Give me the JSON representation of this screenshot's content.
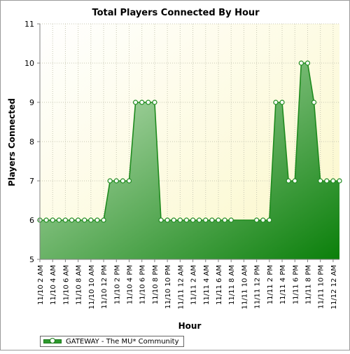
{
  "chart_data": {
    "type": "area",
    "title": "Total Players Connected By Hour",
    "xlabel": "Hour",
    "ylabel": "Players Connected",
    "ylim": [
      5,
      11
    ],
    "yticks": [
      5,
      6,
      7,
      8,
      9,
      10,
      11
    ],
    "grid": true,
    "legend_position": "bottom-left",
    "x_tick_labels": [
      "11/10 2 AM",
      "11/10 4 AM",
      "11/10 6 AM",
      "11/10 8 AM",
      "11/10 10 AM",
      "11/10 12 PM",
      "11/10 2 PM",
      "11/10 4 PM",
      "11/10 6 PM",
      "11/10 8 PM",
      "11/10 10 PM",
      "11/11 12 AM",
      "11/11 2 AM",
      "11/11 4 AM",
      "11/11 6 AM",
      "11/11 8 AM",
      "11/11 10 AM",
      "11/11 12 PM",
      "11/11 2 PM",
      "11/11 4 PM",
      "11/11 6 PM",
      "11/11 8 PM",
      "11/11 10 PM",
      "11/12 12 AM"
    ],
    "series": [
      {
        "name": "GATEWAY - The MU* Community",
        "color": "#1e8a1e",
        "values": [
          6,
          6,
          6,
          6,
          6,
          6,
          6,
          6,
          6,
          6,
          6,
          7,
          7,
          7,
          7,
          9,
          9,
          9,
          9,
          6,
          6,
          6,
          6,
          6,
          6,
          6,
          6,
          6,
          6,
          6,
          6,
          null,
          null,
          null,
          6,
          6,
          6,
          9,
          9,
          7,
          7,
          10,
          10,
          9,
          7,
          7,
          7,
          7
        ]
      }
    ],
    "x_start_label": "11/10 2 AM",
    "interval_hours": 1
  }
}
